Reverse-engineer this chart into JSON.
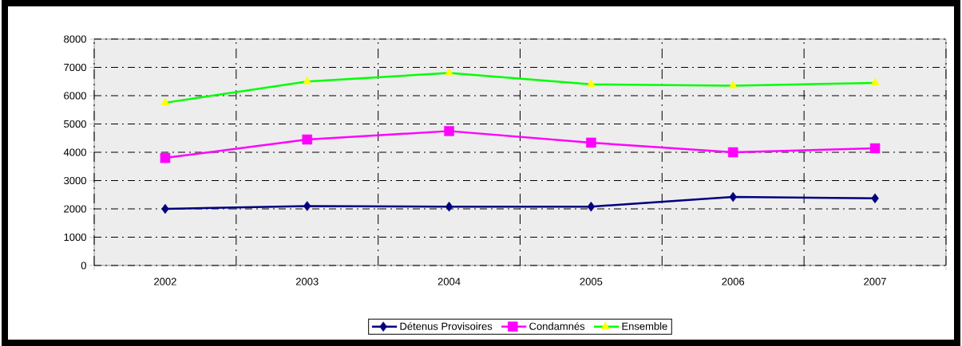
{
  "chart_data": {
    "type": "line",
    "categories": [
      "2002",
      "2003",
      "2004",
      "2005",
      "2006",
      "2007"
    ],
    "series": [
      {
        "name": "Détenus Provisoires",
        "color": "#000080",
        "marker": "diamond",
        "values": [
          2000,
          2100,
          2080,
          2080,
          2420,
          2370
        ]
      },
      {
        "name": "Condamnés",
        "color": "#ff00ff",
        "marker": "square",
        "values": [
          3800,
          4450,
          4750,
          4340,
          4000,
          4140
        ]
      },
      {
        "name": "Ensemble",
        "color": "#00ff00",
        "marker": "triangle",
        "colors": [
          "#ffff00",
          "#ffff00",
          "#ffff00",
          "#ffff00",
          "#ffff00",
          "#ffff00"
        ],
        "values": [
          5750,
          6500,
          6800,
          6400,
          6350,
          6450
        ]
      }
    ],
    "ylim": [
      0,
      8000
    ],
    "yticks": [
      0,
      1000,
      2000,
      3000,
      4000,
      5000,
      6000,
      7000,
      8000
    ],
    "grid": true,
    "legend": "bottom",
    "line_style": "solid"
  }
}
